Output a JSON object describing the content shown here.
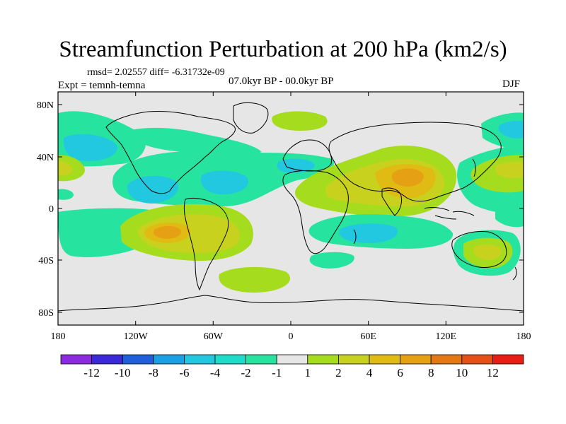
{
  "title": "Streamfunction Perturbation at 200 hPa (km2/s)",
  "rmsd_line": "rmsd= 2.02557  diff= -6.31732e-09",
  "experiment": "Expt = temnh-temna",
  "period": "07.0kyr BP - 00.0kyr BP",
  "season": "DJF",
  "axes": {
    "x_ticks": [
      "180",
      "120W",
      "60W",
      "0",
      "60E",
      "120E",
      "180"
    ],
    "y_ticks": [
      "80N",
      "40N",
      "0",
      "40S",
      "80S"
    ]
  },
  "colorbar": {
    "labels": [
      "-12",
      "-10",
      "-8",
      "-6",
      "-4",
      "-2",
      "-1",
      "1",
      "2",
      "4",
      "6",
      "8",
      "10",
      "12"
    ],
    "colors": [
      "#8a2be2",
      "#3b28d8",
      "#1f5fdc",
      "#1aa0e6",
      "#21c8e0",
      "#1fdcc8",
      "#27e3a0",
      "#e6e6e6",
      "#a6dc1e",
      "#c8d21e",
      "#e0bb14",
      "#e6a014",
      "#e67814",
      "#e65014",
      "#e81e14"
    ]
  },
  "colors": {
    "background_ocean": "#e6e6e6",
    "positive_2": "#a6dc1e",
    "positive_4": "#c8d21e",
    "positive_6": "#e0bb14",
    "positive_8": "#e6a014",
    "positive_10": "#e67814",
    "negative_1": "#27e3a0",
    "negative_2": "#1fdcc8",
    "negative_4": "#21c8e0"
  }
}
